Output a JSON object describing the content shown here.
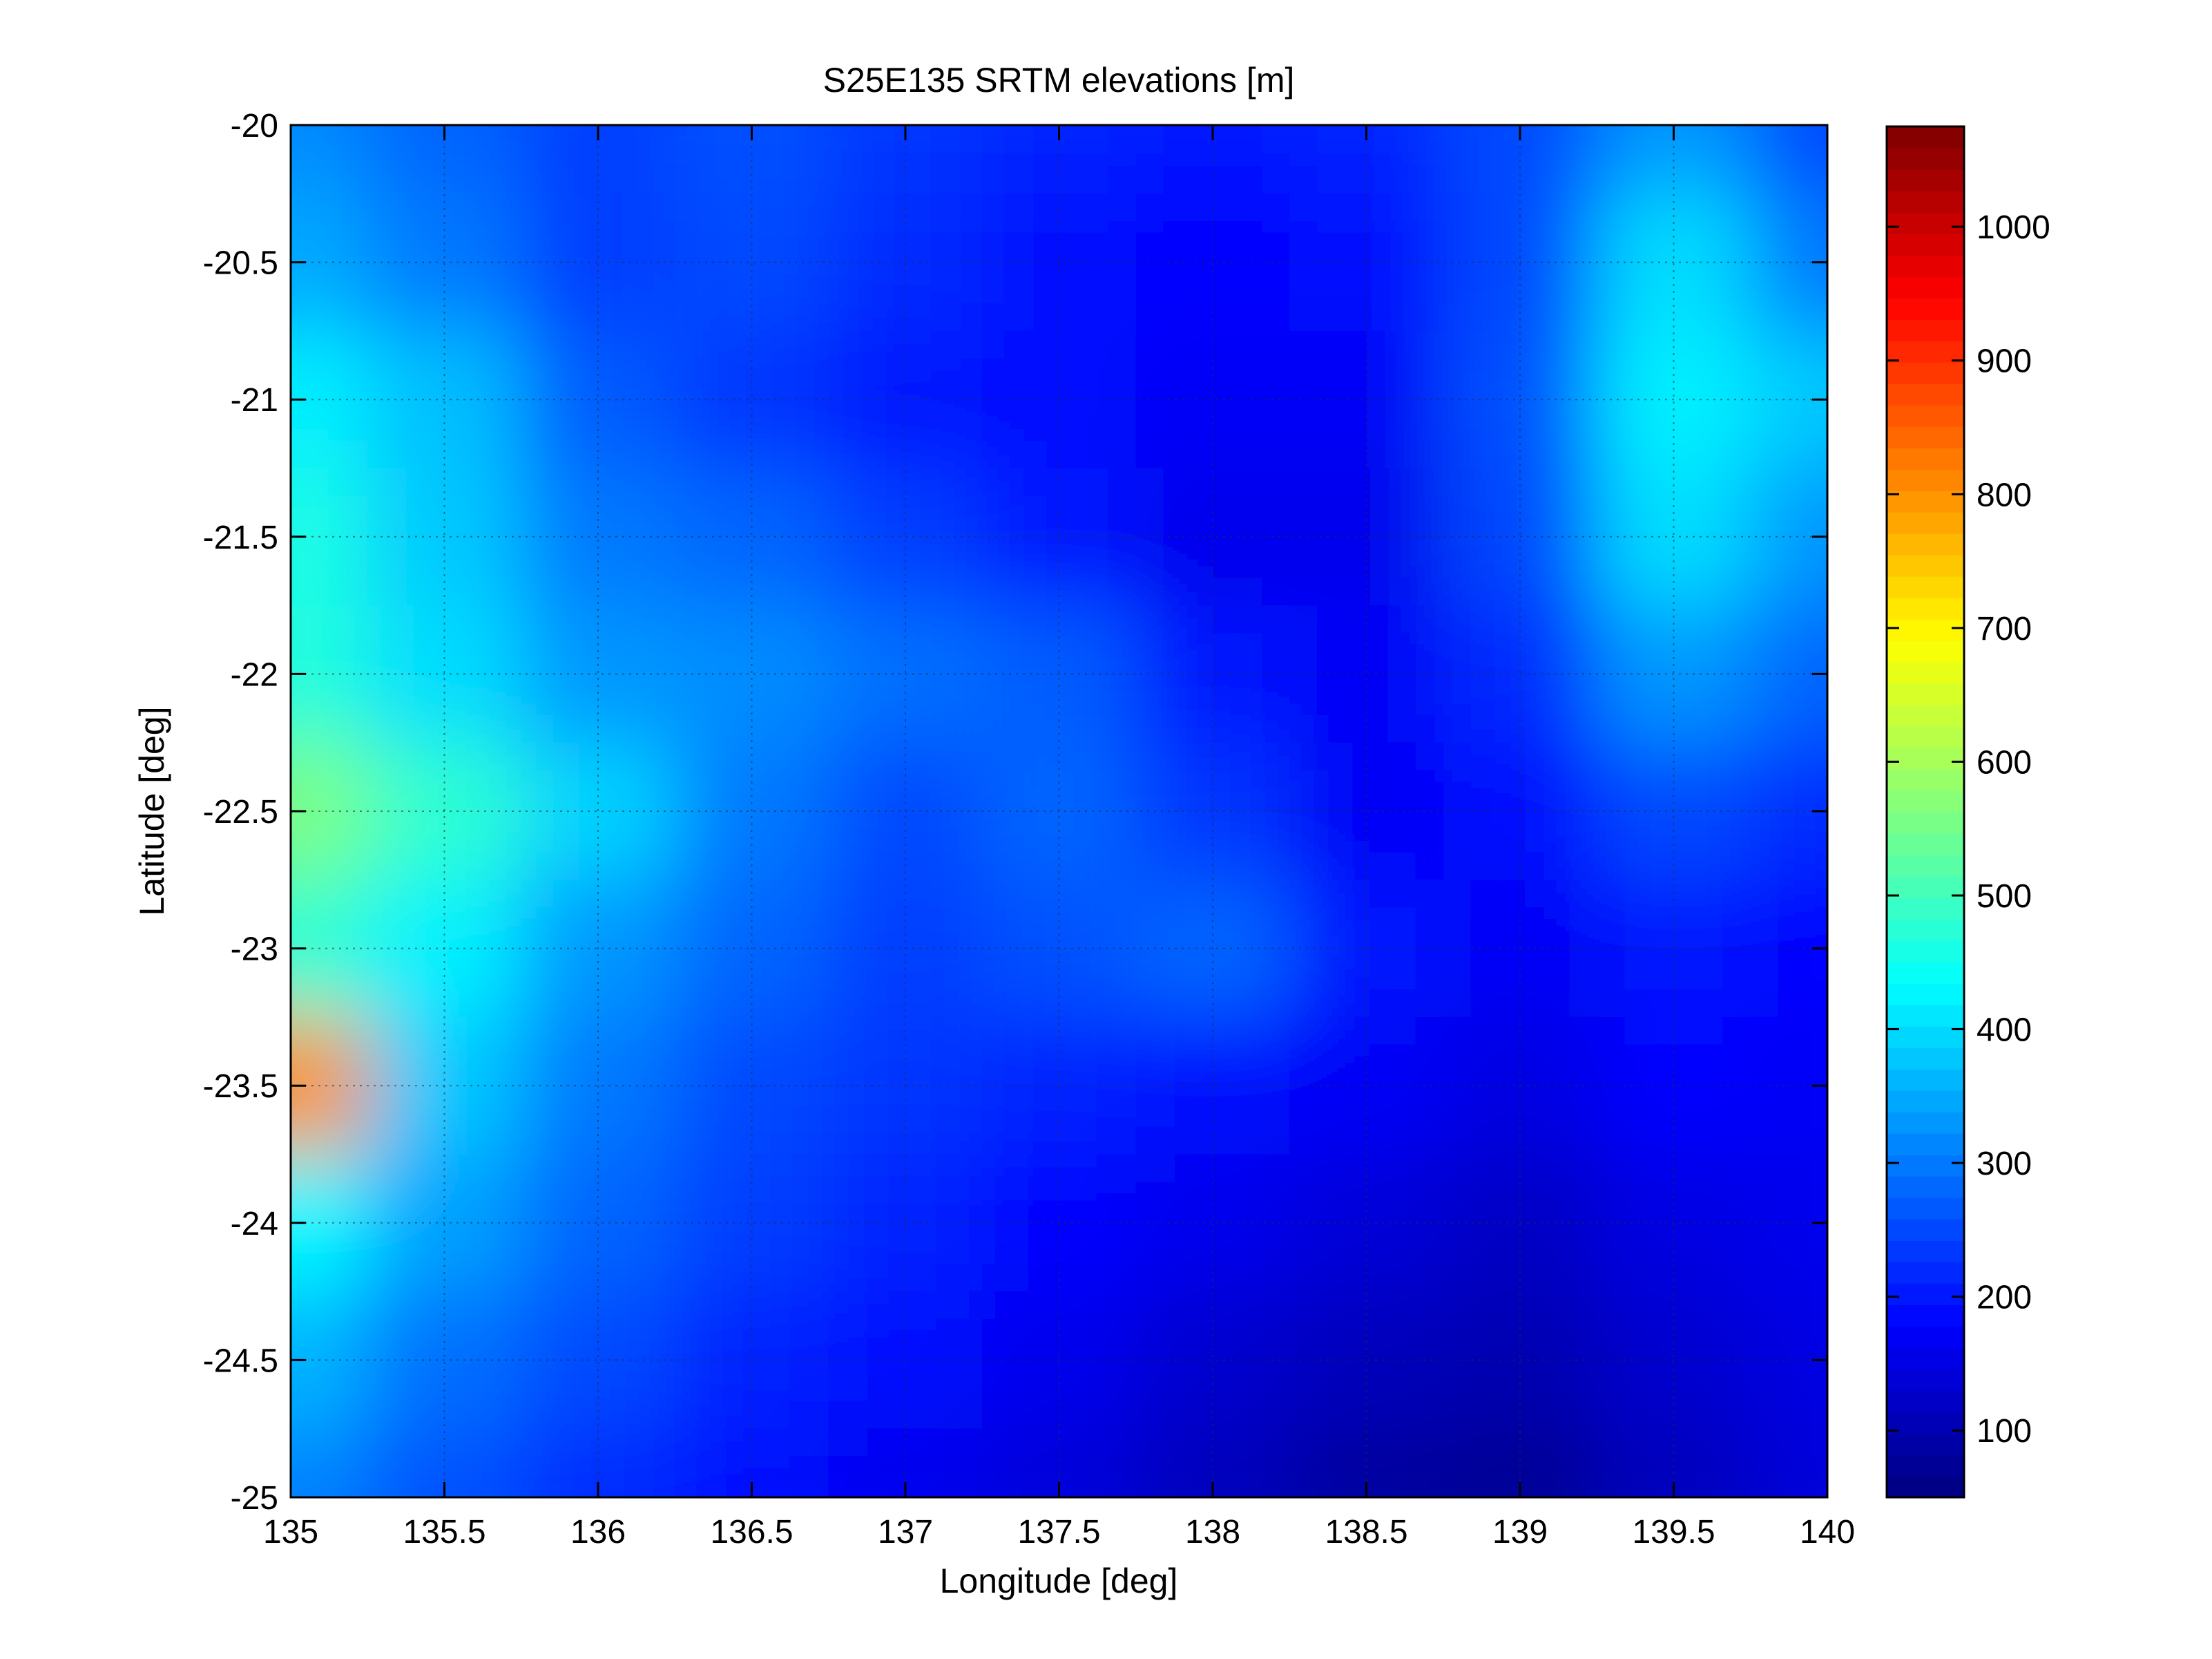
{
  "chart_data": {
    "type": "heatmap",
    "title": "S25E135 SRTM elevations [m]",
    "xlabel": "Longitude [deg]",
    "ylabel": "Latitude [deg]",
    "xlim": [
      135,
      140
    ],
    "ylim": [
      -25,
      -20
    ],
    "x_ticks": [
      "135",
      "135.5",
      "136",
      "136.5",
      "137",
      "137.5",
      "138",
      "138.5",
      "139",
      "139.5",
      "140"
    ],
    "x_tick_values": [
      135,
      135.5,
      136,
      136.5,
      137,
      137.5,
      138,
      138.5,
      139,
      139.5,
      140
    ],
    "y_ticks": [
      "-20",
      "-20.5",
      "-21",
      "-21.5",
      "-22",
      "-22.5",
      "-23",
      "-23.5",
      "-24",
      "-24.5",
      "-25"
    ],
    "y_tick_values": [
      -20,
      -20.5,
      -21,
      -21.5,
      -22,
      -22.5,
      -23,
      -23.5,
      -24,
      -24.5,
      -25
    ],
    "grid": true,
    "colormap": "jet",
    "colorbar": {
      "clim": [
        50,
        1075
      ],
      "ticks": [
        "100",
        "200",
        "300",
        "400",
        "500",
        "600",
        "700",
        "800",
        "900",
        "1000"
      ],
      "tick_values": [
        100,
        200,
        300,
        400,
        500,
        600,
        700,
        800,
        900,
        1000
      ],
      "placement": "right"
    },
    "elevation_grid": {
      "lon": [
        135.0,
        135.5,
        136.0,
        136.5,
        137.0,
        137.5,
        138.0,
        138.5,
        139.0,
        139.5,
        140.0
      ],
      "lat": [
        -20.0,
        -20.5,
        -21.0,
        -21.5,
        -22.0,
        -22.5,
        -23.0,
        -23.5,
        -24.0,
        -24.5,
        -25.0
      ],
      "values_m": [
        [
          320,
          280,
          240,
          260,
          230,
          210,
          200,
          210,
          250,
          330,
          250
        ],
        [
          350,
          300,
          240,
          250,
          220,
          190,
          180,
          190,
          250,
          400,
          300
        ],
        [
          420,
          370,
          270,
          230,
          200,
          190,
          170,
          170,
          260,
          420,
          380
        ],
        [
          460,
          380,
          300,
          280,
          240,
          200,
          160,
          160,
          250,
          400,
          330
        ],
        [
          470,
          400,
          330,
          320,
          290,
          270,
          200,
          170,
          220,
          330,
          280
        ],
        [
          560,
          480,
          390,
          300,
          250,
          280,
          230,
          170,
          190,
          250,
          220
        ],
        [
          480,
          420,
          330,
          280,
          240,
          260,
          280,
          200,
          170,
          200,
          180
        ],
        [
          800,
          380,
          300,
          250,
          230,
          210,
          190,
          170,
          150,
          180,
          170
        ],
        [
          430,
          340,
          280,
          240,
          210,
          180,
          160,
          140,
          120,
          150,
          160
        ],
        [
          360,
          290,
          250,
          210,
          190,
          160,
          130,
          110,
          100,
          130,
          150
        ],
        [
          310,
          260,
          220,
          190,
          160,
          140,
          110,
          80,
          70,
          110,
          140
        ]
      ]
    }
  },
  "colors": {
    "axis": "#000000",
    "grid": "#2b2b2b",
    "background": "#ffffff"
  }
}
